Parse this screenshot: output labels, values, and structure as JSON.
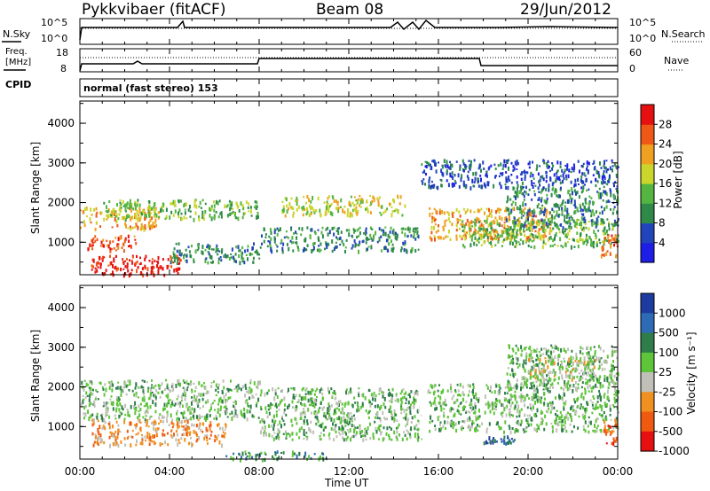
{
  "header": {
    "station": "Pykkvibaer (fitACF)",
    "beam": "Beam 08",
    "date": "29/Jun/2012"
  },
  "nsky_panel": {
    "left_label": "N.Sky",
    "right_label": "N.Search",
    "left_ticks": [
      "10^5",
      "10^0"
    ],
    "right_ticks": [
      "10^5",
      "10^0"
    ]
  },
  "freq_panel": {
    "left_label_1": "Freq.",
    "left_label_2": "[MHz]",
    "right_label": "Nave",
    "left_ticks": [
      "18",
      "8"
    ],
    "right_ticks": [
      "60",
      "0"
    ]
  },
  "cpid": {
    "label": "CPID",
    "value": "normal (fast stereo) 153"
  },
  "colors": {
    "power": [
      "#1e1ee6",
      "#2244bb",
      "#2f8a4a",
      "#54b540",
      "#cad62c",
      "#f0a020",
      "#f05818",
      "#e61010"
    ],
    "velocity": [
      "#1e3ca0",
      "#2d6bb4",
      "#2e7d4a",
      "#5ec43a",
      "#c0c0b8",
      "#f09020",
      "#f05a10",
      "#e61010"
    ]
  },
  "chart_data": [
    {
      "type": "heatmap",
      "name": "power-panel",
      "ylabel": "Slant Range [km]",
      "yticks": [
        "4000",
        "3000",
        "2000",
        "1000"
      ],
      "ylim": [
        180,
        4560
      ],
      "xlim": [
        0,
        24
      ],
      "colorbar_label": "Power [dB]",
      "colorbar_ticks": [
        "28",
        "24",
        "20",
        "16",
        "12",
        "8",
        "4"
      ],
      "colorbar_range": [
        0,
        32
      ],
      "regions": [
        {
          "t0": 0.0,
          "t1": 3.5,
          "r0": 1350,
          "r1": 1900,
          "level": 6
        },
        {
          "t0": 0.3,
          "t1": 2.5,
          "r0": 800,
          "r1": 1200,
          "level": 7
        },
        {
          "t0": 0.5,
          "t1": 4.5,
          "r0": 200,
          "r1": 700,
          "level": 8
        },
        {
          "t0": 1.0,
          "t1": 8.0,
          "r0": 1600,
          "r1": 2100,
          "level": 4
        },
        {
          "t0": 4.0,
          "t1": 8.0,
          "r0": 500,
          "r1": 1000,
          "level": 3
        },
        {
          "t0": 8.0,
          "t1": 15.2,
          "r0": 800,
          "r1": 1400,
          "level": 3
        },
        {
          "t0": 9.0,
          "t1": 14.5,
          "r0": 1700,
          "r1": 2200,
          "level": 5
        },
        {
          "t0": 15.5,
          "t1": 21.0,
          "r0": 1100,
          "r1": 1900,
          "level": 6
        },
        {
          "t0": 17.0,
          "t1": 24.0,
          "r0": 900,
          "r1": 1600,
          "level": 4
        },
        {
          "t0": 19.0,
          "t1": 24.0,
          "r0": 1400,
          "r1": 2400,
          "level": 3
        },
        {
          "t0": 23.2,
          "t1": 24.0,
          "r0": 600,
          "r1": 1200,
          "level": 7
        },
        {
          "t0": 15.2,
          "t1": 24.0,
          "r0": 2400,
          "r1": 3100,
          "level": 2
        }
      ]
    },
    {
      "type": "heatmap",
      "name": "velocity-panel",
      "ylabel": "Slant Range [km]",
      "yticks": [
        "4000",
        "3000",
        "2000",
        "1000"
      ],
      "ylim": [
        180,
        4560
      ],
      "xlim": [
        0,
        24
      ],
      "colorbar_label": "Velocity [m s⁻¹]",
      "colorbar_ticks": [
        "1000",
        "500",
        "100",
        "25",
        "-25",
        "-100",
        "-500",
        "-1000"
      ],
      "regions": [
        {
          "t0": 0.0,
          "t1": 8.0,
          "r0": 1200,
          "r1": 2200,
          "level": 4
        },
        {
          "t0": 0.5,
          "t1": 6.5,
          "r0": 550,
          "r1": 1200,
          "level": 6
        },
        {
          "t0": 8.0,
          "t1": 15.2,
          "r0": 700,
          "r1": 2000,
          "level": 4
        },
        {
          "t0": 6.5,
          "t1": 11.0,
          "r0": 200,
          "r1": 400,
          "level": 3
        },
        {
          "t0": 15.5,
          "t1": 24.0,
          "r0": 900,
          "r1": 2100,
          "level": 4
        },
        {
          "t0": 19.0,
          "t1": 24.0,
          "r0": 2000,
          "r1": 3100,
          "level": 4
        },
        {
          "t0": 20.0,
          "t1": 23.0,
          "r0": 2200,
          "r1": 2800,
          "level": 5
        },
        {
          "t0": 23.3,
          "t1": 24.0,
          "r0": 600,
          "r1": 1200,
          "level": 7
        },
        {
          "t0": 18.0,
          "t1": 19.5,
          "r0": 600,
          "r1": 800,
          "level": 2
        }
      ]
    }
  ],
  "xaxis": {
    "label": "Time UT",
    "ticks": [
      "00:00",
      "04:00",
      "08:00",
      "12:00",
      "16:00",
      "20:00",
      "00:00"
    ]
  }
}
